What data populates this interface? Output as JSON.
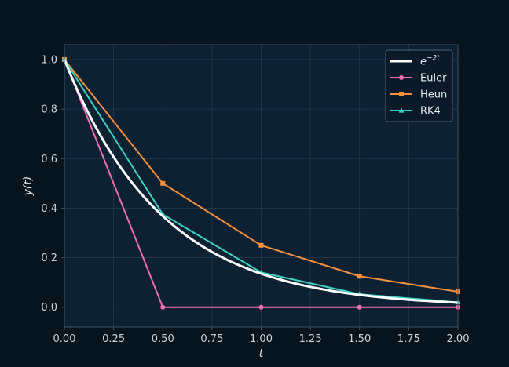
{
  "chart_data": {
    "type": "line",
    "title": "",
    "xlabel": "t",
    "ylabel": "y(t)",
    "xlim": [
      0.0,
      2.0
    ],
    "ylim": [
      -0.08,
      1.06
    ],
    "x_ticks": [
      "0.00",
      "0.25",
      "0.50",
      "0.75",
      "1.00",
      "1.25",
      "1.50",
      "1.75",
      "2.00"
    ],
    "y_ticks": [
      "0.0",
      "0.2",
      "0.4",
      "0.6",
      "0.8",
      "1.0"
    ],
    "grid": true,
    "legend_position": "top-right",
    "colors": {
      "figure_bg": "#07131d",
      "axes_bg": "#0d2133",
      "grid": "#1f3a4f",
      "spine": "#3a5468"
    },
    "series": [
      {
        "name": "e^{-2t}",
        "legend_base": "e",
        "legend_sup": "−2t",
        "kind": "exact",
        "color": "#ffffff",
        "marker": "none",
        "x": [
          0.0,
          0.25,
          0.5,
          0.75,
          1.0,
          1.25,
          1.5,
          1.75,
          2.0
        ],
        "values": [
          1.0,
          0.607,
          0.368,
          0.223,
          0.135,
          0.082,
          0.05,
          0.03,
          0.018
        ]
      },
      {
        "name": "Euler",
        "color": "#f06eb4",
        "marker": "circle",
        "x": [
          0.0,
          0.5,
          1.0,
          1.5,
          2.0
        ],
        "values": [
          1.0,
          0.0,
          0.0,
          0.0,
          0.0
        ]
      },
      {
        "name": "Heun",
        "color": "#f5913e",
        "marker": "square",
        "x": [
          0.0,
          0.5,
          1.0,
          1.5,
          2.0
        ],
        "values": [
          1.0,
          0.5,
          0.25,
          0.125,
          0.0625
        ]
      },
      {
        "name": "RK4",
        "color": "#3dd1bf",
        "marker": "triangle",
        "x": [
          0.0,
          0.5,
          1.0,
          1.5,
          2.0
        ],
        "values": [
          1.0,
          0.375,
          0.1406,
          0.0527,
          0.0198
        ]
      }
    ]
  }
}
